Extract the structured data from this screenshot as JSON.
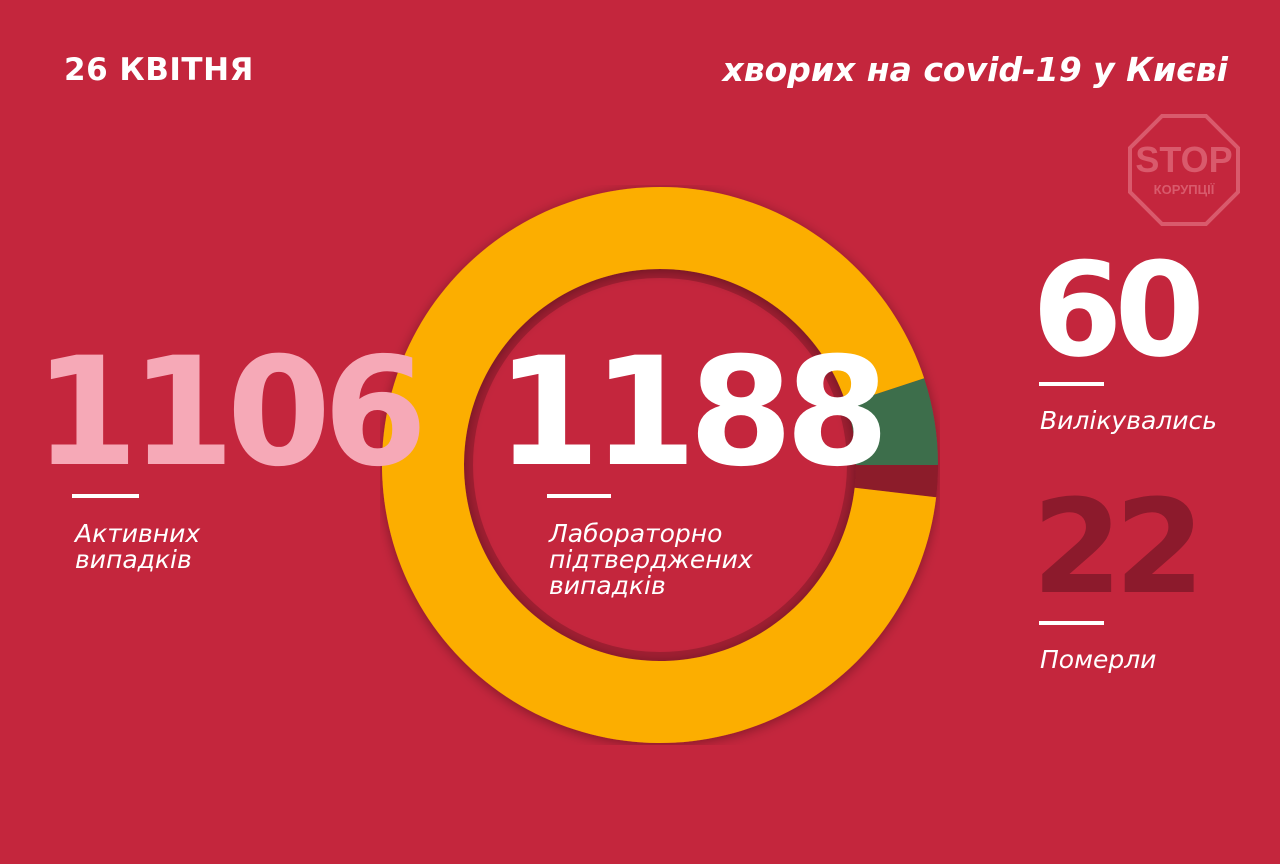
{
  "header": {
    "date": "26 КВІТНЯ",
    "title": "хворих на covid-19 у Києві"
  },
  "logo": {
    "line1": "STOP",
    "line2": "КОРУПЦІЇ"
  },
  "colors": {
    "background": "#c4263d",
    "active": "#fcae00",
    "recovered": "#3c6e4c",
    "deaths": "#8c1a2c",
    "active_number": "#f6a9b7"
  },
  "stats": {
    "active": {
      "value": "1106",
      "label_line1": "Активних",
      "label_line2": "випадків"
    },
    "confirmed": {
      "value": "1188",
      "label_line1": "Лабораторно",
      "label_line2": "підтверджених",
      "label_line3": "випадків"
    },
    "recovered": {
      "value": "60",
      "label": "Вилікувались"
    },
    "deaths": {
      "value": "22",
      "label": "Померли"
    }
  },
  "chart_data": {
    "type": "pie",
    "donut": true,
    "total": 1188,
    "categories": [
      "Активних випадків",
      "Вилікувались",
      "Померли"
    ],
    "values": [
      1106,
      60,
      22
    ],
    "colors": [
      "#fcae00",
      "#3c6e4c",
      "#8c1a2c"
    ]
  }
}
